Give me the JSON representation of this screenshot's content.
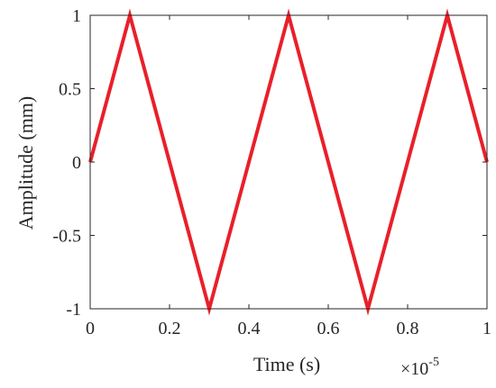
{
  "chart_data": {
    "type": "line",
    "title": "",
    "xlabel": "Time (s)",
    "ylabel": "Amplitude (mm)",
    "x_multiplier": {
      "base": "×10",
      "exponent": "-5"
    },
    "xlim": [
      0,
      1
    ],
    "ylim": [
      -1,
      1
    ],
    "xticks": [
      "0",
      "0.2",
      "0.4",
      "0.6",
      "0.8",
      "1"
    ],
    "xtick_values": [
      0,
      0.2,
      0.4,
      0.6,
      0.8,
      1
    ],
    "yticks": [
      "-1",
      "-0.5",
      "0",
      "0.5",
      "1"
    ],
    "ytick_values": [
      -1,
      -0.5,
      0,
      0.5,
      1
    ],
    "grid": false,
    "box": true,
    "series": [
      {
        "color": "#e8202a",
        "x": [
          0,
          0.1,
          0.3,
          0.5,
          0.7,
          0.9,
          1.0
        ],
        "y": [
          0,
          1,
          -1,
          1,
          -1,
          1,
          0
        ]
      }
    ],
    "colors": {
      "axis": "#262626",
      "background": "#ffffff"
    }
  }
}
